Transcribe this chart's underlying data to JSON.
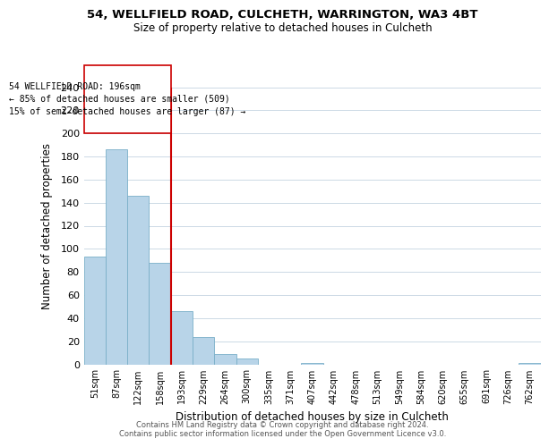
{
  "title": "54, WELLFIELD ROAD, CULCHETH, WARRINGTON, WA3 4BT",
  "subtitle": "Size of property relative to detached houses in Culcheth",
  "xlabel": "Distribution of detached houses by size in Culcheth",
  "ylabel": "Number of detached properties",
  "bar_labels": [
    "51sqm",
    "87sqm",
    "122sqm",
    "158sqm",
    "193sqm",
    "229sqm",
    "264sqm",
    "300sqm",
    "335sqm",
    "371sqm",
    "407sqm",
    "442sqm",
    "478sqm",
    "513sqm",
    "549sqm",
    "584sqm",
    "620sqm",
    "655sqm",
    "691sqm",
    "726sqm",
    "762sqm"
  ],
  "bar_values": [
    93,
    186,
    146,
    88,
    46,
    24,
    9,
    5,
    0,
    0,
    1,
    0,
    0,
    0,
    0,
    0,
    0,
    0,
    0,
    0,
    1
  ],
  "bar_color": "#b8d4e8",
  "bar_edge_color": "#7aafc8",
  "vline_x_idx": 4,
  "vline_color": "#cc0000",
  "ylim": [
    0,
    240
  ],
  "yticks": [
    0,
    20,
    40,
    60,
    80,
    100,
    120,
    140,
    160,
    180,
    200,
    220,
    240
  ],
  "annotation_title": "54 WELLFIELD ROAD: 196sqm",
  "annotation_line1": "← 85% of detached houses are smaller (509)",
  "annotation_line2": "15% of semi-detached houses are larger (87) →",
  "footer_line1": "Contains HM Land Registry data © Crown copyright and database right 2024.",
  "footer_line2": "Contains public sector information licensed under the Open Government Licence v3.0.",
  "background_color": "#ffffff",
  "grid_color": "#ccd9e5"
}
